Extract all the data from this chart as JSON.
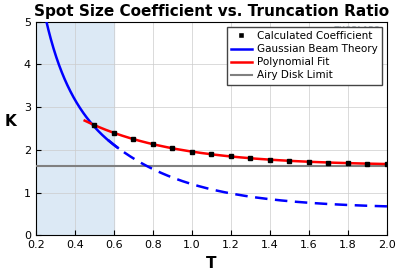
{
  "title": "Spot Size Coefficient vs. Truncation Ratio",
  "xlabel": "T",
  "ylabel": "K",
  "xlim": [
    0.2,
    2.0
  ],
  "ylim": [
    0.0,
    5.0
  ],
  "xticks": [
    0.2,
    0.4,
    0.6,
    0.8,
    1.0,
    1.2,
    1.4,
    1.6,
    1.8,
    2.0
  ],
  "yticks": [
    0,
    1,
    2,
    3,
    4,
    5
  ],
  "airy_disk_limit": 1.63,
  "bg_shade_xmax": 0.6,
  "bg_shade_color": "#dce9f5",
  "gaussian_color": "#0000ff",
  "poly_fit_color": "#ff0000",
  "airy_color": "#808080",
  "calc_color": "#000000",
  "thorlabs_text": "THORLABS",
  "thorlabs_color": "#b0b8c0",
  "legend_labels": [
    "Calculated Coefficient",
    "Gaussian Beam Theory",
    "Polynomial Fit",
    "Airy Disk Limit"
  ],
  "title_fontsize": 11,
  "axis_label_fontsize": 11,
  "tick_fontsize": 8,
  "legend_fontsize": 7.5,
  "gauss_solid_xend": 0.62,
  "gauss_dash_xstart": 0.57
}
